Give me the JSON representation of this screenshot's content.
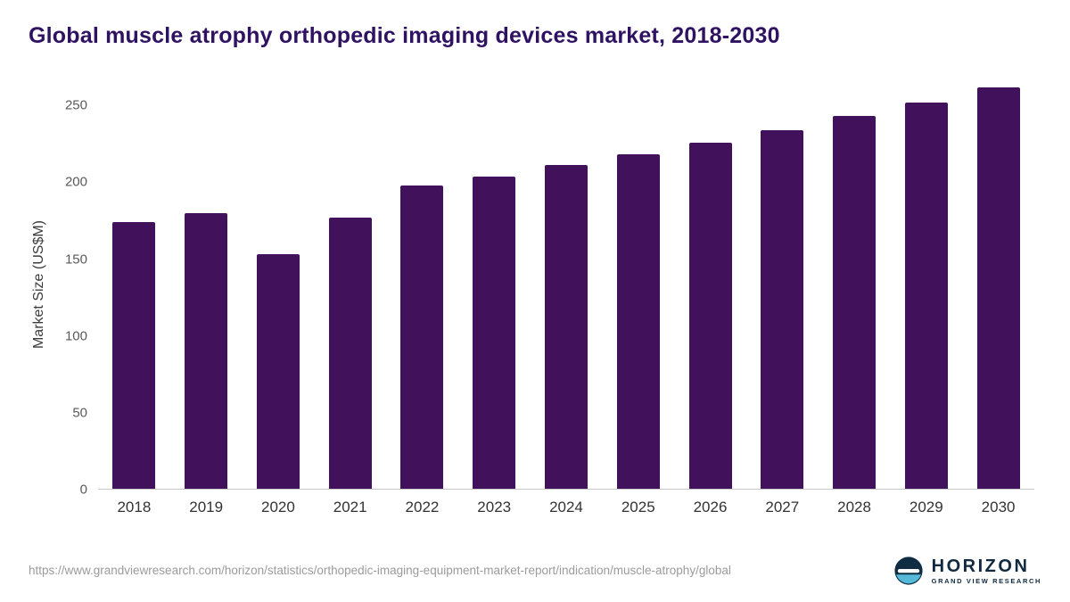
{
  "title": "Global muscle atrophy orthopedic imaging devices market, 2018-2030",
  "source_url": "https://www.grandviewresearch.com/horizon/statistics/orthopedic-imaging-equipment-market-report/indication/muscle-atrophy/global",
  "logo": {
    "name": "HORIZON",
    "subtitle": "GRAND VIEW RESEARCH"
  },
  "chart_data": {
    "type": "bar",
    "title": "Global muscle atrophy orthopedic imaging devices market, 2018-2030",
    "categories": [
      "2018",
      "2019",
      "2020",
      "2021",
      "2022",
      "2023",
      "2024",
      "2025",
      "2026",
      "2027",
      "2028",
      "2029",
      "2030"
    ],
    "values": [
      174,
      180,
      153,
      177,
      198,
      204,
      211,
      218,
      226,
      234,
      243,
      252,
      262
    ],
    "xlabel": "",
    "ylabel": "Market Size (US$M)",
    "yticks": [
      0,
      50,
      100,
      150,
      200,
      250
    ],
    "ylim": [
      0,
      267
    ],
    "bar_color": "#41115c",
    "grid": false,
    "legend": false
  }
}
